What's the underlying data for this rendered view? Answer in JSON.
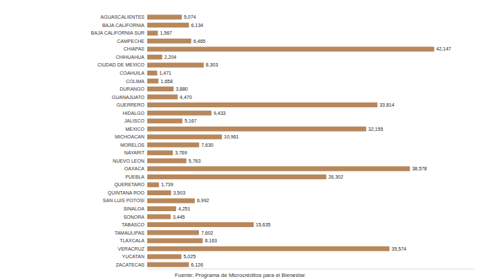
{
  "chart_data": {
    "type": "bar",
    "orientation": "horizontal",
    "categories": [
      "AGUASCALIENTES",
      "BAJA CALIFORNIA",
      "BAJA CALIFORNIA SUR",
      "CAMPECHE",
      "CHIAPAS",
      "CHIHUAHUA",
      "CIUDAD DE MEXICO",
      "COAHUILA",
      "COLIMA",
      "DURANGO",
      "GUANAJUATO",
      "GUERRERO",
      "HIDALGO",
      "JALISCO",
      "MEXICO",
      "MICHOACAN",
      "MORELOS",
      "NAYARIT",
      "NUEVO LEON",
      "OAXACA",
      "PUEBLA",
      "QUERETARO",
      "QUINTANA ROO",
      "SAN LUIS POTOSI",
      "SINALOA",
      "SONORA",
      "TABASCO",
      "TAMAULIPAS",
      "TLAXCALA",
      "VERACRUZ",
      "YUCATAN",
      "ZACATECAS"
    ],
    "values": [
      5074,
      6134,
      1567,
      6465,
      42147,
      2204,
      8303,
      1471,
      1658,
      3880,
      4470,
      33814,
      9433,
      5167,
      32155,
      10961,
      7630,
      3769,
      5763,
      38578,
      26302,
      1739,
      3503,
      6992,
      4251,
      3445,
      15635,
      7602,
      8163,
      35574,
      5025,
      6126
    ],
    "value_labels": [
      "5,074",
      "6,134",
      "1,567",
      "6,465",
      "42,147",
      "2,204",
      "8,303",
      "1,471",
      "1,658",
      "3,880",
      "4,470",
      "33,814",
      "9,433",
      "5,167",
      "32,155",
      "10,961",
      "7,630",
      "3,769",
      "5,763",
      "38,578",
      "26,302",
      "1,739",
      "3,503",
      "6,992",
      "4,251",
      "3,445",
      "15,635",
      "7,602",
      "8,163",
      "35,574",
      "5,025",
      "6,126"
    ],
    "color": "#b8885c",
    "xlim": [
      0,
      48000
    ],
    "grid": false,
    "data_labels": true,
    "tick_labels": "y",
    "annotations": [
      "Fuente: Programa de Microcréditos para el Bienestar."
    ]
  }
}
